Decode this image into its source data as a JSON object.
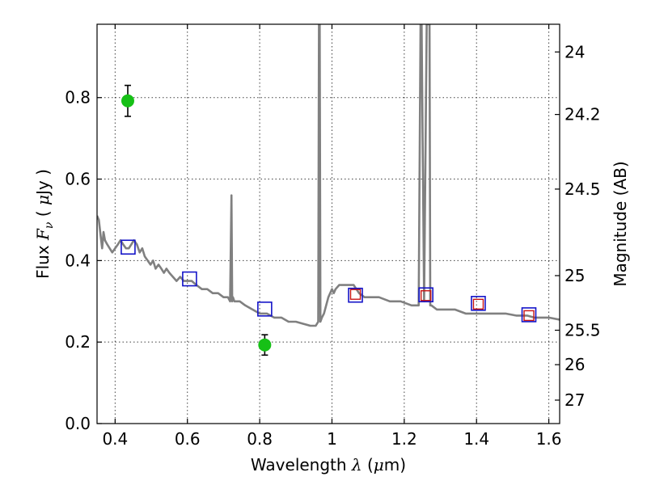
{
  "chart_data": {
    "type": "line",
    "xlabel": "Wavelength  λ (μm)",
    "ylabel": "Flux  F_ν  ( μJy )",
    "ylabel_parts": [
      "Flux  ",
      "F",
      "ν",
      "  ( ",
      "μ",
      "Jy )"
    ],
    "xlabel_parts": [
      "Wavelength  ",
      "λ",
      " (",
      "μ",
      "m)"
    ],
    "y2label": "Magnitude (AB)",
    "xlim": [
      0.35,
      1.63
    ],
    "ylim": [
      0.0,
      0.98
    ],
    "x_ticks": [
      0.4,
      0.6,
      0.8,
      1.0,
      1.2,
      1.4,
      1.6
    ],
    "x_tick_labels": [
      "0.4",
      "0.6",
      "0.8",
      "1",
      "1.2",
      "1.4",
      "1.6"
    ],
    "y_ticks": [
      0.0,
      0.2,
      0.4,
      0.6,
      0.8
    ],
    "y_tick_labels": [
      "0.0",
      "0.2",
      "0.4",
      "0.6",
      "0.8"
    ],
    "y2_ticks": [
      24,
      24.2,
      24.5,
      25,
      25.5,
      26,
      27
    ],
    "y2_tick_labels": [
      "24",
      "24.2",
      "24.5",
      "25",
      "25.5",
      "26",
      "27"
    ],
    "grid": true,
    "series": [
      {
        "kind": "sed-model",
        "color": "#808080",
        "x": [
          0.35,
          0.355,
          0.36,
          0.364,
          0.368,
          0.372,
          0.378,
          0.385,
          0.392,
          0.4,
          0.408,
          0.415,
          0.422,
          0.43,
          0.438,
          0.445,
          0.452,
          0.46,
          0.468,
          0.475,
          0.482,
          0.49,
          0.498,
          0.505,
          0.512,
          0.52,
          0.528,
          0.535,
          0.542,
          0.55,
          0.56,
          0.57,
          0.58,
          0.59,
          0.6,
          0.612,
          0.625,
          0.64,
          0.655,
          0.67,
          0.685,
          0.7,
          0.712,
          0.718,
          0.722,
          0.724,
          0.726,
          0.73,
          0.745,
          0.76,
          0.78,
          0.8,
          0.82,
          0.84,
          0.86,
          0.88,
          0.9,
          0.92,
          0.94,
          0.955,
          0.962,
          0.964,
          0.966,
          0.968,
          0.972,
          0.978,
          0.984,
          0.99,
          1.0,
          1.005,
          1.01,
          1.02,
          1.04,
          1.06,
          1.075,
          1.09,
          1.11,
          1.13,
          1.16,
          1.19,
          1.22,
          1.24,
          1.245,
          1.248,
          1.255,
          1.262,
          1.27,
          1.272,
          1.275,
          1.29,
          1.31,
          1.34,
          1.37,
          1.4,
          1.42,
          1.45,
          1.48,
          1.51,
          1.54,
          1.56,
          1.58,
          1.6,
          1.63
        ],
        "y": [
          0.51,
          0.5,
          0.46,
          0.43,
          0.47,
          0.45,
          0.44,
          0.43,
          0.42,
          0.43,
          0.44,
          0.45,
          0.44,
          0.43,
          0.43,
          0.44,
          0.45,
          0.44,
          0.42,
          0.43,
          0.41,
          0.4,
          0.39,
          0.4,
          0.38,
          0.39,
          0.38,
          0.37,
          0.38,
          0.37,
          0.36,
          0.35,
          0.36,
          0.35,
          0.35,
          0.35,
          0.34,
          0.33,
          0.33,
          0.32,
          0.32,
          0.31,
          0.31,
          0.3,
          0.56,
          0.3,
          0.31,
          0.3,
          0.3,
          0.29,
          0.28,
          0.27,
          0.27,
          0.26,
          0.26,
          0.25,
          0.25,
          0.245,
          0.24,
          0.24,
          0.25,
          0.98,
          0.98,
          0.25,
          0.26,
          0.27,
          0.29,
          0.31,
          0.33,
          0.32,
          0.33,
          0.34,
          0.34,
          0.34,
          0.32,
          0.31,
          0.31,
          0.31,
          0.3,
          0.3,
          0.29,
          0.29,
          0.98,
          0.98,
          0.3,
          0.98,
          0.98,
          0.29,
          0.29,
          0.28,
          0.28,
          0.28,
          0.27,
          0.27,
          0.27,
          0.27,
          0.27,
          0.265,
          0.265,
          0.26,
          0.26,
          0.26,
          0.255
        ]
      }
    ],
    "model_band_flux": {
      "marker": "square",
      "color": "#1414c8",
      "points": [
        {
          "x": 0.436,
          "y": 0.433
        },
        {
          "x": 0.606,
          "y": 0.355
        },
        {
          "x": 0.814,
          "y": 0.281
        },
        {
          "x": 1.065,
          "y": 0.315
        },
        {
          "x": 1.26,
          "y": 0.316
        },
        {
          "x": 1.405,
          "y": 0.295
        },
        {
          "x": 1.545,
          "y": 0.267
        }
      ]
    },
    "observed_band_flux": {
      "marker": "square",
      "color": "#c81414",
      "points": [
        {
          "x": 1.065,
          "y": 0.317
        },
        {
          "x": 1.26,
          "y": 0.314
        },
        {
          "x": 1.405,
          "y": 0.293
        },
        {
          "x": 1.545,
          "y": 0.265
        }
      ]
    },
    "measurements": {
      "marker": "circle",
      "color": "#16c016",
      "points": [
        {
          "x": 0.435,
          "y": 0.792,
          "yerr": 0.038
        },
        {
          "x": 0.814,
          "y": 0.193,
          "yerr": 0.025
        }
      ]
    }
  }
}
